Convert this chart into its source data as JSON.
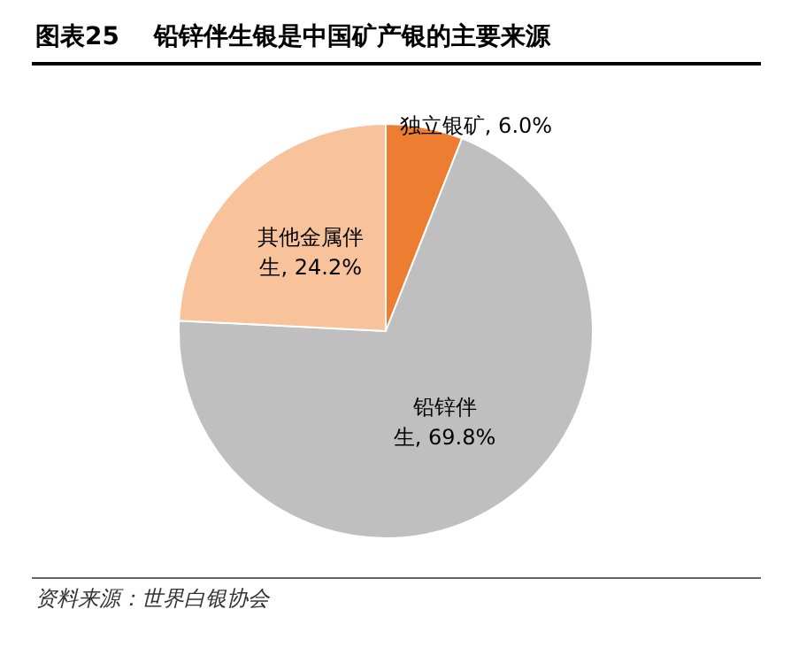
{
  "chart_data": {
    "type": "pie",
    "title": "图表25    铅锌伴生银是中国矿产银的主要来源",
    "categories": [
      "独立银矿",
      "铅锌伴生",
      "其他金属伴生"
    ],
    "values": [
      6.0,
      69.8,
      24.2
    ],
    "value_labels": [
      "6.0%",
      "69.8%",
      "24.2%"
    ],
    "colors": [
      "#ed7d31",
      "#bfbfbf",
      "#f8c29a"
    ],
    "annotations": [
      "资料来源：世界白银协会"
    ],
    "legend": false
  }
}
